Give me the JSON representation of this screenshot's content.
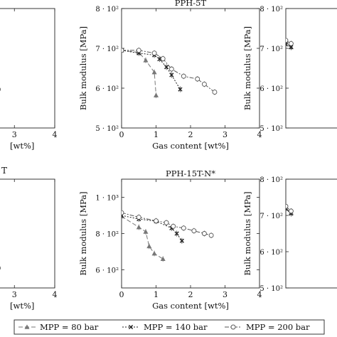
{
  "chart_data": [
    {
      "type": "line",
      "title": "",
      "xlabel": "[wt%]",
      "ylabel": "",
      "xlim": [
        0,
        4
      ],
      "ylim": [
        500,
        800
      ],
      "x_ticks": [
        3,
        4
      ],
      "y_ticks": [],
      "series": [
        {
          "name": "MPP = 200 bar",
          "x": [
            2.2,
            2.6
          ],
          "y": [
            618,
            597
          ]
        }
      ]
    },
    {
      "type": "line",
      "title": "PPH-5T",
      "xlabel": "Gas content [wt%]",
      "ylabel": "Bulk modulus [MPa]",
      "xlim": [
        0,
        4
      ],
      "ylim": [
        500,
        800
      ],
      "x_ticks": [
        "0",
        "1",
        "2",
        "3",
        "4"
      ],
      "y_ticks": [
        {
          "v": 500,
          "t": "5 · 10²"
        },
        {
          "v": 600,
          "t": "6 · 10²"
        },
        {
          "v": 700,
          "t": "7 · 10²"
        },
        {
          "v": 800,
          "t": "8 · 10²"
        }
      ],
      "series": [
        {
          "name": "MPP = 80 bar",
          "x": [
            0,
            0.5,
            0.7,
            0.95,
            1.0
          ],
          "y": [
            695,
            690,
            670,
            640,
            582
          ]
        },
        {
          "name": "MPP = 140 bar",
          "x": [
            0,
            0.5,
            0.95,
            1.1,
            1.3,
            1.45,
            1.7
          ],
          "y": [
            695,
            688,
            683,
            673,
            653,
            633,
            597
          ]
        },
        {
          "name": "MPP = 200 bar",
          "x": [
            0,
            0.5,
            0.95,
            1.2,
            1.45,
            1.8,
            2.2,
            2.4,
            2.7
          ],
          "y": [
            695,
            695,
            688,
            674,
            648,
            630,
            623,
            610,
            590
          ]
        }
      ]
    },
    {
      "type": "line",
      "title": "",
      "xlabel": "",
      "ylabel": "Bulk modulus [MPa]",
      "xlim": [
        0,
        4
      ],
      "ylim": [
        500,
        800
      ],
      "x_ticks": [],
      "y_ticks": [
        {
          "v": 500,
          "t": "5 · 10²"
        },
        {
          "v": 600,
          "t": "6 · 10²"
        },
        {
          "v": 700,
          "t": "7 · 10²"
        },
        {
          "v": 800,
          "t": "8 · 10²"
        }
      ],
      "series": [
        {
          "name": "MPP = 80 bar",
          "x": [
            0,
            0.15
          ],
          "y": [
            715,
            703
          ]
        },
        {
          "name": "MPP = 140 bar",
          "x": [
            0,
            0.15
          ],
          "y": [
            710,
            703
          ]
        },
        {
          "name": "MPP = 200 bar",
          "x": [
            0,
            0.15
          ],
          "y": [
            720,
            712
          ]
        }
      ]
    },
    {
      "type": "line",
      "title": "",
      "xlabel": "[wt%]",
      "ylabel": "",
      "xlim": [
        0,
        4
      ],
      "ylim": [
        500,
        1100
      ],
      "x_ticks": [
        3,
        4
      ],
      "y_ticks": [],
      "series": [
        {
          "name": "MPP = 200 bar",
          "x": [
            2.2,
            2.6
          ],
          "y": [
            680,
            610
          ]
        }
      ]
    },
    {
      "type": "line",
      "title": "PPH-15T-N*",
      "xlabel": "Gas content [wt%]",
      "ylabel": "Bulk modulus [MPa]",
      "xlim": [
        0,
        4
      ],
      "ylim": [
        500,
        1100
      ],
      "x_ticks": [
        "0",
        "1",
        "2",
        "3",
        "4"
      ],
      "y_ticks": [
        {
          "v": 600,
          "t": "6 · 10²"
        },
        {
          "v": 800,
          "t": "8 · 10²"
        },
        {
          "v": 1000,
          "t": "1 · 10³"
        }
      ],
      "series": [
        {
          "name": "MPP = 80 bar",
          "x": [
            0,
            0.5,
            0.7,
            0.8,
            0.95,
            1.2
          ],
          "y": [
            895,
            835,
            810,
            730,
            690,
            660
          ]
        },
        {
          "name": "MPP = 140 bar",
          "x": [
            0,
            0.5,
            1.0,
            1.45,
            1.6,
            1.75
          ],
          "y": [
            900,
            880,
            868,
            830,
            800,
            760
          ]
        },
        {
          "name": "MPP = 200 bar",
          "x": [
            0,
            0.5,
            1.0,
            1.3,
            1.5,
            1.8,
            2.1,
            2.4,
            2.6
          ],
          "y": [
            915,
            890,
            870,
            860,
            840,
            830,
            815,
            800,
            790
          ]
        }
      ]
    },
    {
      "type": "line",
      "title": "",
      "xlabel": "",
      "ylabel": "Bulk modulus [MPa]",
      "xlim": [
        0,
        4
      ],
      "ylim": [
        500,
        800
      ],
      "x_ticks": [],
      "y_ticks": [
        {
          "v": 500,
          "t": "5 · 10²"
        },
        {
          "v": 600,
          "t": "6 · 10²"
        },
        {
          "v": 700,
          "t": "7 · 10²"
        },
        {
          "v": 800,
          "t": "8 · 10²"
        }
      ],
      "series": [
        {
          "name": "MPP = 80 bar",
          "x": [
            0,
            0.15
          ],
          "y": [
            720,
            708
          ]
        },
        {
          "name": "MPP = 140 bar",
          "x": [
            0,
            0.15
          ],
          "y": [
            718,
            705
          ]
        },
        {
          "name": "MPP = 200 bar",
          "x": [
            0,
            0.15
          ],
          "y": [
            725,
            712
          ]
        }
      ]
    }
  ],
  "partial_title": "T",
  "legend": {
    "items": [
      {
        "label": "MPP = 80 bar",
        "marker": "triangle",
        "dash": "6,3"
      },
      {
        "label": "MPP = 140 bar",
        "marker": "cross",
        "dash": "2,2"
      },
      {
        "label": "MPP = 200 bar",
        "marker": "circle",
        "dash": "6,2,2,2"
      }
    ]
  }
}
